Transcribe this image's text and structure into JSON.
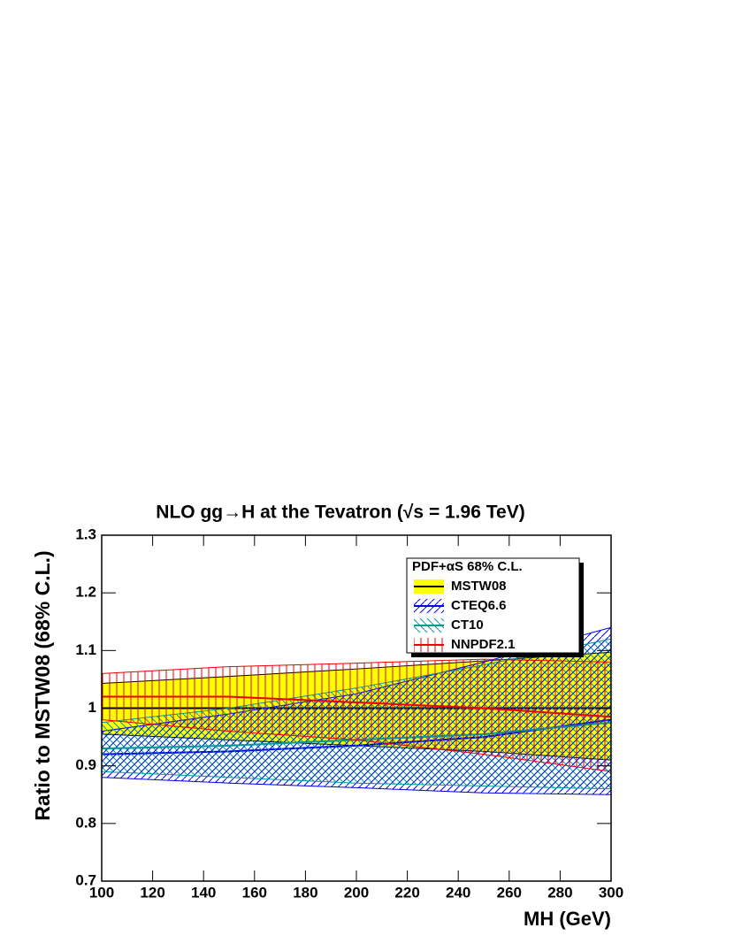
{
  "chart_data": {
    "type": "band",
    "title": "NLO gg→H at the Tevatron (√s = 1.96 TeV)",
    "x_label": "MH  (GeV)",
    "y_label": "Ratio to MSTW08 (68% C.L.)",
    "legend_title": "PDF+αS 68% C.L.",
    "x": [
      100,
      150,
      200,
      250,
      300
    ],
    "xlim": [
      100,
      300
    ],
    "xticks": [
      100,
      120,
      140,
      160,
      180,
      200,
      220,
      240,
      260,
      280,
      300
    ],
    "ylim": [
      0.7,
      1.3
    ],
    "yticks": [
      0.7,
      0.8,
      0.9,
      1,
      1.1,
      1.2,
      1.3
    ],
    "series": [
      {
        "name": "MSTW08",
        "color": "#000000",
        "fill": "#ffff00",
        "values": [
          1,
          1,
          1,
          1,
          1
        ],
        "lower": [
          0.955,
          0.945,
          0.935,
          0.925,
          0.91
        ],
        "upper": [
          1.043,
          1.055,
          1.068,
          1.082,
          1.097
        ]
      },
      {
        "name": "CTEQ6.6",
        "color": "#0000ee",
        "hatch": "/",
        "values": [
          0.92,
          0.925,
          0.935,
          0.95,
          0.98
        ],
        "lower": [
          0.88,
          0.87,
          0.862,
          0.853,
          0.85
        ],
        "upper": [
          0.96,
          0.99,
          1.025,
          1.08,
          1.14
        ]
      },
      {
        "name": "CT10",
        "color": "#009999",
        "hatch": "\\",
        "values": [
          0.93,
          0.935,
          0.945,
          0.955,
          0.975
        ],
        "lower": [
          0.89,
          0.88,
          0.87,
          0.865,
          0.86
        ],
        "upper": [
          0.975,
          1.0,
          1.035,
          1.075,
          1.12
        ]
      },
      {
        "name": "NNPDF2.1",
        "color": "#ee0000",
        "hatch": "|",
        "values": [
          1.02,
          1.02,
          1.01,
          1.0,
          0.985
        ],
        "lower": [
          0.98,
          0.96,
          0.945,
          0.92,
          0.89
        ],
        "upper": [
          1.06,
          1.072,
          1.078,
          1.085,
          1.08
        ]
      }
    ]
  }
}
